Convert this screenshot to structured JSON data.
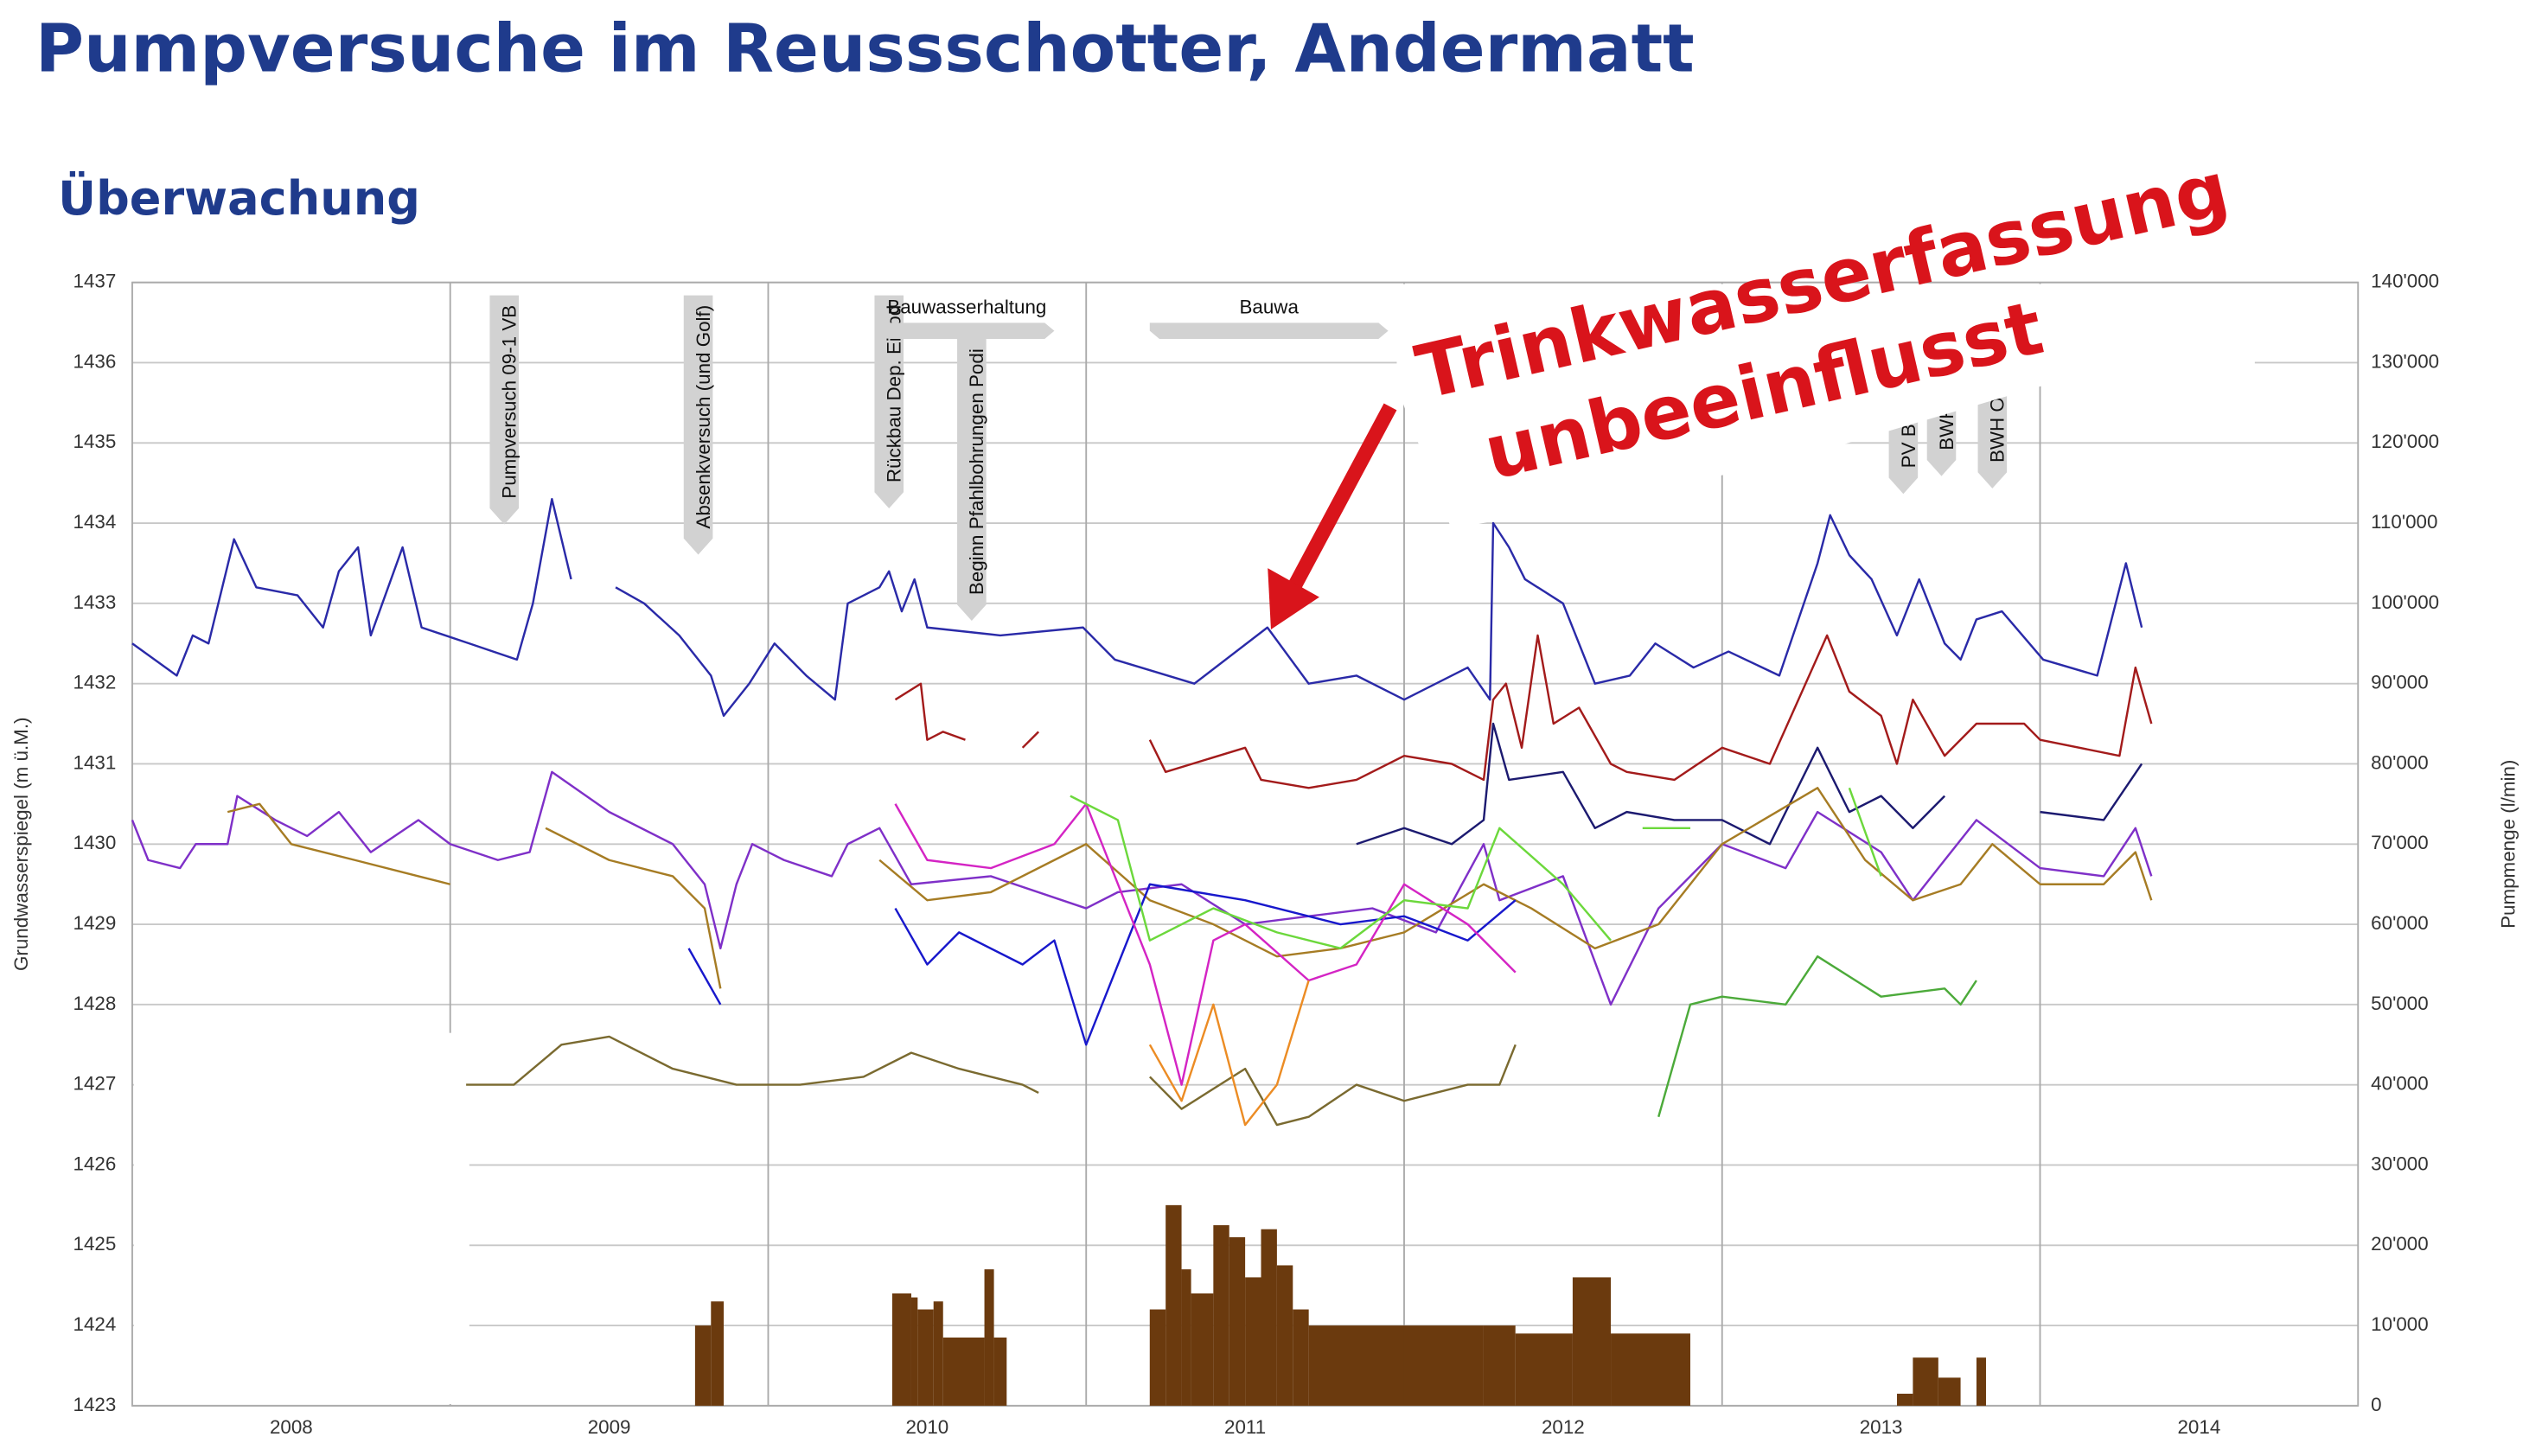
{
  "title": "Pumpversuche im Reussschotter, Andermatt",
  "subtitle": "Überwachung",
  "callout": {
    "lines": [
      "Trinkwasserfassung",
      "unbeeinflusst"
    ],
    "color": "#d9141b"
  },
  "chart_data": {
    "type": "line",
    "y_label": "Grundwasserspiegel (m ü.M.)",
    "y2_label": "Pumpmenge (l/min)",
    "xlim": [
      2008,
      2015
    ],
    "xticks": [
      {
        "value": 2008.5,
        "label": "2008"
      },
      {
        "value": 2009.5,
        "label": "2009"
      },
      {
        "value": 2010.5,
        "label": "2010"
      },
      {
        "value": 2011.5,
        "label": "2011"
      },
      {
        "value": 2012.5,
        "label": "2012"
      },
      {
        "value": 2013.5,
        "label": "2013"
      },
      {
        "value": 2014.5,
        "label": "2014"
      }
    ],
    "x_gridlines": [
      2009,
      2010,
      2011,
      2012,
      2013,
      2014
    ],
    "ylim": [
      1423,
      1437
    ],
    "yticks": [
      1423,
      1424,
      1425,
      1426,
      1427,
      1428,
      1429,
      1430,
      1431,
      1432,
      1433,
      1434,
      1435,
      1436,
      1437
    ],
    "y2lim": [
      0,
      140000
    ],
    "y2ticks": [
      0,
      {
        "value": 10000,
        "label": "10'000"
      },
      {
        "value": 20000,
        "label": "20'000"
      },
      {
        "value": 30000,
        "label": "30'000"
      },
      {
        "value": 40000,
        "label": "40'000"
      },
      {
        "value": 50000,
        "label": "50'000"
      },
      {
        "value": 60000,
        "label": "60'000"
      },
      {
        "value": 70000,
        "label": "70'000"
      },
      {
        "value": 80000,
        "label": "80'000"
      },
      {
        "value": 90000,
        "label": "90'000"
      },
      {
        "value": 100000,
        "label": "100'000"
      },
      {
        "value": 110000,
        "label": "110'000"
      },
      {
        "value": 120000,
        "label": "120'000"
      },
      {
        "value": 130000,
        "label": "130'000"
      },
      {
        "value": 140000,
        "label": "140'000"
      }
    ],
    "grid": true,
    "series": [
      {
        "color": "#2a2aa8",
        "x": [
          2008.0,
          2008.14,
          2008.19,
          2008.24,
          2008.32,
          2008.39,
          2008.52,
          2008.6,
          2008.65,
          2008.71,
          2008.75,
          2008.85,
          2008.91,
          2009.06,
          2009.21,
          2009.26,
          2009.32,
          2009.38,
          2009.45,
          2009.52,
          2009.61,
          2009.72,
          2009.82,
          2009.86,
          2009.94,
          2010.02,
          2010.12,
          2010.21,
          2010.25,
          2010.35,
          2010.38,
          2010.42,
          2010.46,
          2010.5,
          2010.73,
          2010.99,
          2011.09,
          2011.34,
          2011.57,
          2011.7,
          2011.85,
          2012.0,
          2012.2,
          2012.27,
          2012.28,
          2012.33,
          2012.38,
          2012.5,
          2012.6,
          2012.71,
          2012.79,
          2012.91,
          2013.02,
          2013.18,
          2013.3,
          2013.34,
          2013.4,
          2013.47,
          2013.55,
          2013.62,
          2013.7,
          2013.75,
          2013.8,
          2013.88,
          2014.01,
          2014.18,
          2014.27,
          2014.32
        ],
        "values": [
          1432.5,
          1432.1,
          1432.6,
          1432.5,
          1433.8,
          1433.2,
          1433.1,
          1432.7,
          1433.4,
          1433.7,
          1432.6,
          1433.7,
          1432.7,
          1432.5,
          1432.3,
          1433.0,
          1434.3,
          1433.3,
          null,
          1433.2,
          1433.0,
          1432.6,
          1432.1,
          1431.6,
          1432.0,
          1432.5,
          1432.1,
          1431.8,
          1433.0,
          1433.2,
          1433.4,
          1432.9,
          1433.3,
          1432.7,
          1432.6,
          1432.7,
          1432.3,
          1432.0,
          1432.7,
          1432.0,
          1432.1,
          1431.8,
          1432.2,
          1431.8,
          1434.0,
          1433.7,
          1433.3,
          1433.0,
          1432.0,
          1432.1,
          1432.5,
          1432.2,
          1432.4,
          1432.1,
          1433.5,
          1434.1,
          1433.6,
          1433.3,
          1432.6,
          1433.3,
          1432.5,
          1432.3,
          1432.8,
          1432.9,
          1432.3,
          1432.1,
          1433.5,
          1432.7
        ]
      },
      {
        "color": "#a31b1b",
        "x": [
          2010.4,
          2010.48,
          2010.5,
          2010.55,
          2010.62,
          2010.7,
          2010.8,
          2010.85,
          2010.95,
          2011.2,
          2011.25,
          2011.5,
          2011.55,
          2011.7,
          2011.85,
          2012.0,
          2012.15,
          2012.25,
          2012.28,
          2012.32,
          2012.37,
          2012.42,
          2012.47,
          2012.55,
          2012.65,
          2012.7,
          2012.85,
          2013.0,
          2013.15,
          2013.33,
          2013.4,
          2013.5,
          2013.55,
          2013.6,
          2013.7,
          2013.8,
          2013.95,
          2014.0,
          2014.25,
          2014.3,
          2014.35
        ],
        "values": [
          1431.8,
          1432.0,
          1431.3,
          1431.4,
          1431.3,
          null,
          1431.2,
          1431.4,
          null,
          1431.3,
          1430.9,
          1431.2,
          1430.8,
          1430.7,
          1430.8,
          1431.1,
          1431.0,
          1430.8,
          1431.8,
          1432.0,
          1431.2,
          1432.6,
          1431.5,
          1431.7,
          1431.0,
          1430.9,
          1430.8,
          1431.2,
          1431.0,
          1432.6,
          1431.9,
          1431.6,
          1431.0,
          1431.8,
          1431.1,
          1431.5,
          1431.5,
          1431.3,
          1431.1,
          1432.2,
          1431.5
        ]
      },
      {
        "color": "#1c1a70",
        "x": [
          2011.85,
          2012.0,
          2012.15,
          2012.25,
          2012.28,
          2012.33,
          2012.5,
          2012.6,
          2012.7,
          2012.85,
          2013.0,
          2013.15,
          2013.3,
          2013.4,
          2013.5,
          2013.6,
          2013.7,
          2013.85,
          2014.0,
          2014.2,
          2014.32
        ],
        "values": [
          1430.0,
          1430.2,
          1430.0,
          1430.3,
          1431.5,
          1430.8,
          1430.9,
          1430.2,
          1430.4,
          1430.3,
          1430.3,
          1430.0,
          1431.2,
          1430.4,
          1430.6,
          1430.2,
          1430.6,
          null,
          1430.4,
          1430.3,
          1431.0
        ]
      },
      {
        "color": "#7f30c8",
        "x": [
          2008.0,
          2008.05,
          2008.15,
          2008.2,
          2008.3,
          2008.33,
          2008.45,
          2008.55,
          2008.65,
          2008.75,
          2008.9,
          2009.0,
          2009.15,
          2009.25,
          2009.32,
          2009.5,
          2009.7,
          2009.8,
          2009.85,
          2009.9,
          2009.95,
          2010.05,
          2010.2,
          2010.25,
          2010.35,
          2010.45,
          2010.7,
          2011.0,
          2011.1,
          2011.3,
          2011.5,
          2011.7,
          2011.9,
          2012.1,
          2012.25,
          2012.3,
          2012.5,
          2012.65,
          2012.8,
          2013.0,
          2013.2,
          2013.3,
          2013.5,
          2013.6,
          2013.7,
          2013.8,
          2014.0,
          2014.2,
          2014.3,
          2014.35
        ],
        "values": [
          1430.3,
          1429.8,
          1429.7,
          1430.0,
          1430.0,
          1430.6,
          1430.3,
          1430.1,
          1430.4,
          1429.9,
          1430.3,
          1430.0,
          1429.8,
          1429.9,
          1430.9,
          1430.4,
          1430.0,
          1429.5,
          1428.7,
          1429.5,
          1430.0,
          1429.8,
          1429.6,
          1430.0,
          1430.2,
          1429.5,
          1429.6,
          1429.2,
          1429.4,
          1429.5,
          1429.0,
          1429.1,
          1429.2,
          1428.9,
          1430.0,
          1429.3,
          1429.6,
          1428.0,
          1429.2,
          1430.0,
          1429.7,
          1430.4,
          1429.9,
          1429.3,
          1429.8,
          1430.3,
          1429.7,
          1429.6,
          1430.2,
          1429.6
        ]
      },
      {
        "color": "#a67c24",
        "x": [
          2008.3,
          2008.4,
          2008.5,
          2008.7,
          2008.9,
          2009.0,
          2009.15,
          2009.3,
          2009.5,
          2009.7,
          2009.8,
          2009.85,
          2010.1,
          2010.35,
          2010.5,
          2010.7,
          2010.9,
          2011.0,
          2011.2,
          2011.4,
          2011.6,
          2011.8,
          2012.0,
          2012.25,
          2012.4,
          2012.6,
          2012.8,
          2013.0,
          2013.3,
          2013.45,
          2013.6,
          2013.75,
          2013.85,
          2014.0,
          2014.2,
          2014.3,
          2014.35
        ],
        "values": [
          1430.4,
          1430.5,
          1430.0,
          1429.8,
          1429.6,
          1429.5,
          null,
          1430.2,
          1429.8,
          1429.6,
          1429.2,
          1428.2,
          null,
          1429.8,
          1429.3,
          1429.4,
          1429.8,
          1430.0,
          1429.3,
          1429.0,
          1428.6,
          1428.7,
          1428.9,
          1429.5,
          1429.2,
          1428.7,
          1429.0,
          1430.0,
          1430.7,
          1429.8,
          1429.3,
          1429.5,
          1430.0,
          1429.5,
          1429.5,
          1429.9,
          1429.3
        ]
      },
      {
        "color": "#1818cc",
        "x": [
          2009.75,
          2009.85,
          2010.1,
          2010.4,
          2010.5,
          2010.6,
          2010.8,
          2010.9,
          2011.0,
          2011.2,
          2011.5,
          2011.8,
          2012.0,
          2012.2,
          2012.35
        ],
        "values": [
          1428.7,
          1428.0,
          null,
          1429.2,
          1428.5,
          1428.9,
          1428.5,
          1428.8,
          1427.5,
          1429.5,
          1429.3,
          1429.0,
          1429.1,
          1428.8,
          1429.3
        ]
      },
      {
        "color": "#d424c4",
        "x": [
          2010.4,
          2010.5,
          2010.7,
          2010.9,
          2011.0,
          2011.2,
          2011.3,
          2011.4,
          2011.5,
          2011.7,
          2011.85,
          2012.0,
          2012.2,
          2012.35
        ],
        "values": [
          1430.5,
          1429.8,
          1429.7,
          1430.0,
          1430.5,
          1428.5,
          1427.0,
          1428.8,
          1429.0,
          1428.3,
          1428.5,
          1429.5,
          1429.0,
          1428.4
        ]
      },
      {
        "color": "#6cd83c",
        "x": [
          2010.95,
          2011.1,
          2011.2,
          2011.4,
          2011.6,
          2011.8,
          2012.0,
          2012.2,
          2012.3,
          2012.5,
          2012.65,
          2012.7,
          2012.75,
          2012.9,
          2013.1,
          2013.4,
          2013.5
        ],
        "values": [
          1430.6,
          1430.3,
          1428.8,
          1429.2,
          1428.9,
          1428.7,
          1429.3,
          1429.2,
          1430.2,
          1429.5,
          1428.8,
          null,
          1430.2,
          1430.2,
          null,
          1430.7,
          1429.6
        ]
      },
      {
        "color": "#7a6a30",
        "x": [
          2009.05,
          2009.2,
          2009.35,
          2009.5,
          2009.7,
          2009.9,
          2010.1,
          2010.3,
          2010.45,
          2010.6,
          2010.8,
          2010.85,
          2011.0,
          2011.2,
          2011.3,
          2011.5,
          2011.6,
          2011.7,
          2011.85,
          2012.0,
          2012.2,
          2012.3,
          2012.35
        ],
        "values": [
          1427.0,
          1427.0,
          1427.5,
          1427.6,
          1427.2,
          1427.0,
          1427.0,
          1427.1,
          1427.4,
          1427.2,
          1427.0,
          1426.9,
          null,
          1427.1,
          1426.7,
          1427.2,
          1426.5,
          1426.6,
          1427.0,
          1426.8,
          1427.0,
          1427.0,
          1427.5
        ]
      },
      {
        "color": "#ec8c24",
        "x": [
          2011.2,
          2011.3,
          2011.4,
          2011.5,
          2011.6,
          2011.7
        ],
        "values": [
          1427.5,
          1426.8,
          1428.0,
          1426.5,
          1427.0,
          1428.3
        ]
      },
      {
        "color": "#4caa3a",
        "x": [
          2012.8,
          2012.9,
          2013.0,
          2013.2,
          2013.3,
          2013.5,
          2013.7,
          2013.75,
          2013.8
        ],
        "values": [
          1426.6,
          1428.0,
          1428.1,
          1428.0,
          1428.6,
          1428.1,
          1428.2,
          1428.0,
          1428.3
        ]
      },
      {
        "type": "step-area",
        "axis": "y2",
        "color": "#6b3a0e",
        "x": [
          2009.77,
          2009.82,
          2009.86,
          2010.39,
          2010.45,
          2010.47,
          2010.52,
          2010.55,
          2010.68,
          2010.71,
          2010.75,
          2011.2,
          2011.25,
          2011.3,
          2011.33,
          2011.4,
          2011.45,
          2011.5,
          2011.55,
          2011.6,
          2011.65,
          2011.7,
          2012.0,
          2012.25,
          2012.35,
          2012.53,
          2012.65,
          2012.9,
          2013.55,
          2013.6,
          2013.68,
          2013.75,
          2013.8,
          2013.83
        ],
        "values": [
          10000,
          13000,
          0,
          14000,
          13500,
          12000,
          13000,
          8500,
          17000,
          8500,
          0,
          12000,
          25000,
          17000,
          14000,
          22500,
          21000,
          16000,
          22000,
          17500,
          12000,
          10000,
          10000,
          10000,
          9000,
          16000,
          9000,
          0,
          1500,
          6000,
          3500,
          0,
          6000,
          0
        ]
      }
    ],
    "annotations": [
      {
        "text": "Pumpversuch 09-1 VB",
        "x": 2009.17
      },
      {
        "text": "Absenkversuch (und Golf)",
        "x": 2009.78
      },
      {
        "text": "Rückbau Dep. Eibod",
        "x": 2010.38
      },
      {
        "text": "Beginn Pfahlbohrungen Podi",
        "x": 2010.64
      },
      {
        "text": "PV Bu",
        "x": 2013.57
      },
      {
        "text": "BWH",
        "x": 2013.69
      },
      {
        "text": "BWH O",
        "x": 2013.85
      }
    ],
    "periods": [
      {
        "text": "Bauwasserhaltung",
        "x": [
          2010.35,
          2010.9
        ]
      },
      {
        "text": "Bauwa",
        "x": [
          2011.2,
          2011.95
        ]
      }
    ]
  }
}
